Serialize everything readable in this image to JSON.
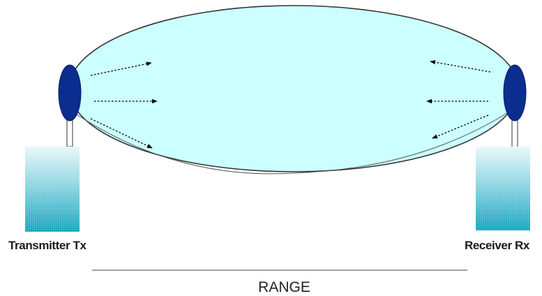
{
  "transmitter": {
    "label": "Transmitter Tx"
  },
  "receiver": {
    "label": "Receiver Rx"
  },
  "range": {
    "label": "RANGE"
  },
  "colors": {
    "field_fill": "#ccffff",
    "field_stroke": "#333333",
    "antenna_fill": "#0a2d8f",
    "device_top": "#e8f8fa",
    "device_bottom": "#1aa6bf",
    "arrow": "#000000"
  }
}
